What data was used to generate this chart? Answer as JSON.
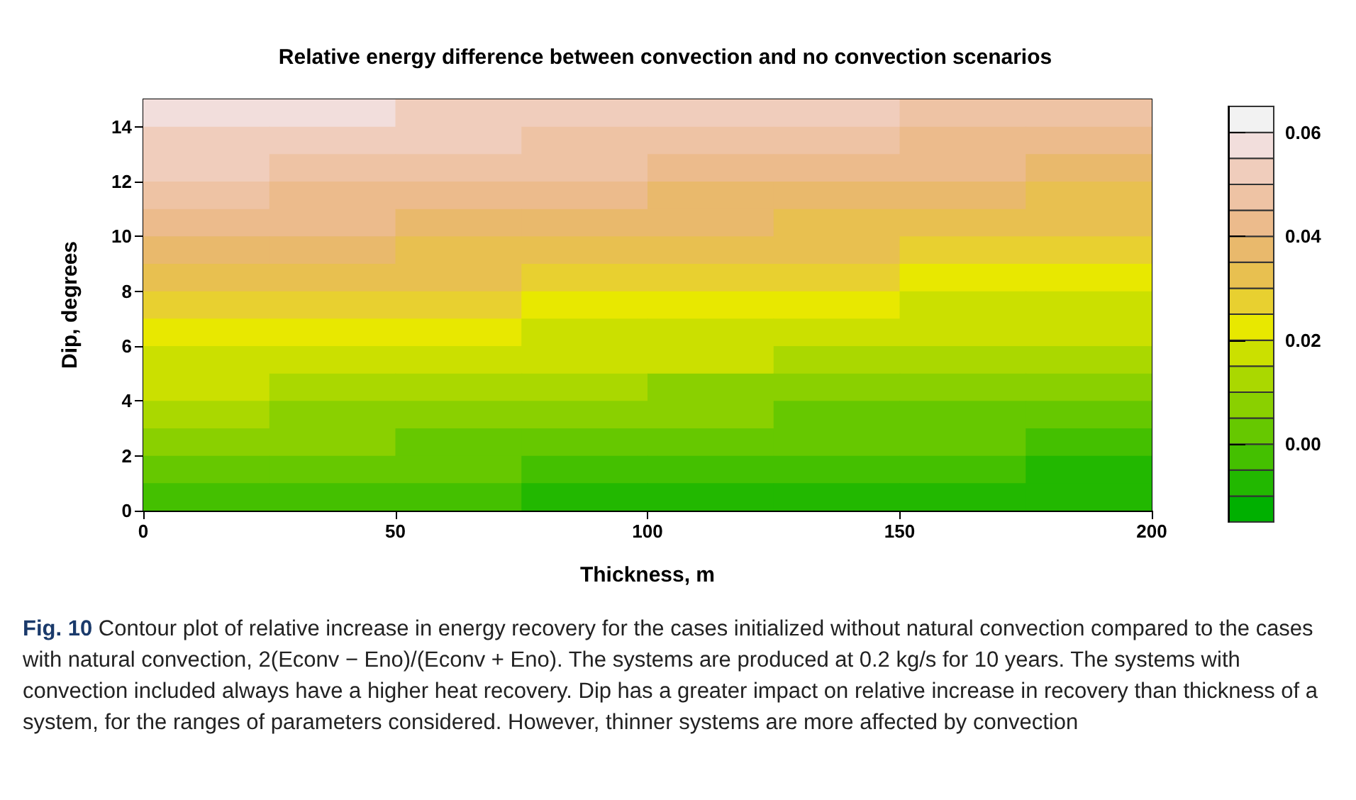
{
  "chart_data": {
    "type": "heatmap",
    "title": "Relative energy difference between convection and no convection scenarios",
    "xlabel": "Thickness, m",
    "ylabel": "Dip, degrees",
    "x": [
      12.5,
      37.5,
      62.5,
      87.5,
      112.5,
      137.5,
      162.5,
      187.5
    ],
    "y": [
      14.5,
      13.5,
      12.5,
      11.5,
      10.5,
      9.5,
      8.5,
      7.5,
      6.5,
      5.5,
      4.5,
      3.5,
      2.5,
      1.5,
      0.5
    ],
    "cells": [
      [
        0.058,
        0.057,
        0.055,
        0.053,
        0.052,
        0.05,
        0.048,
        0.046
      ],
      [
        0.054,
        0.053,
        0.051,
        0.049,
        0.047,
        0.046,
        0.044,
        0.042
      ],
      [
        0.05,
        0.048,
        0.047,
        0.045,
        0.043,
        0.042,
        0.04,
        0.039
      ],
      [
        0.046,
        0.044,
        0.042,
        0.041,
        0.039,
        0.038,
        0.036,
        0.034
      ],
      [
        0.041,
        0.04,
        0.038,
        0.037,
        0.035,
        0.034,
        0.032,
        0.03
      ],
      [
        0.037,
        0.036,
        0.034,
        0.033,
        0.031,
        0.03,
        0.028,
        0.026
      ],
      [
        0.033,
        0.031,
        0.03,
        0.028,
        0.027,
        0.025,
        0.024,
        0.022
      ],
      [
        0.029,
        0.027,
        0.026,
        0.024,
        0.023,
        0.021,
        0.02,
        0.018
      ],
      [
        0.024,
        0.023,
        0.021,
        0.02,
        0.019,
        0.017,
        0.016,
        0.015
      ],
      [
        0.02,
        0.019,
        0.017,
        0.016,
        0.015,
        0.013,
        0.012,
        0.011
      ],
      [
        0.016,
        0.014,
        0.013,
        0.012,
        0.01,
        0.009,
        0.008,
        0.007
      ],
      [
        0.011,
        0.01,
        0.009,
        0.008,
        0.006,
        0.005,
        0.004,
        0.003
      ],
      [
        0.007,
        0.006,
        0.005,
        0.003,
        0.002,
        0.001,
        0.0,
        -0.001
      ],
      [
        0.003,
        0.002,
        0.0,
        -0.001,
        -0.002,
        -0.003,
        -0.004,
        -0.005
      ],
      [
        -0.001,
        -0.003,
        -0.004,
        -0.005,
        -0.006,
        -0.007,
        -0.008,
        -0.009
      ]
    ],
    "xlim": [
      0,
      200
    ],
    "xticks": [
      0,
      50,
      100,
      150,
      200
    ],
    "ylim": [
      0,
      15
    ],
    "yticks": [
      0,
      2,
      4,
      6,
      8,
      10,
      12,
      14
    ],
    "clim": [
      -0.015,
      0.065
    ],
    "cticks": [
      {
        "value": 0,
        "label": "0.00"
      },
      {
        "value": 0.02,
        "label": "0.02"
      },
      {
        "value": 0.04,
        "label": "0.04"
      },
      {
        "value": 0.06,
        "label": "0.06"
      }
    ],
    "colors": [
      "#00b000",
      "#22b800",
      "#44c000",
      "#66c800",
      "#8ad000",
      "#aad800",
      "#cbe000",
      "#e8e800",
      "#e8d030",
      "#e8c050",
      "#e9b96c",
      "#ecbb8c",
      "#eec3a4",
      "#f0cdbc",
      "#f2dedc",
      "#f2f2f2"
    ],
    "grid": false,
    "annotations": [
      "Fig. 10",
      "Contour plot of relative increase in energy recovery for the cases initialized without natural convection compared to the cases with natural convection, 2(Econv − Eno)/(Econv + Eno). The systems are produced at 0.2 kg/s for 10 years. The systems with convection included always have a higher heat recovery. Dip has a greater impact on relative increase in recovery than thickness of a system, for the ranges of parameters considered. However, thinner systems are more affected by convection"
    ]
  }
}
